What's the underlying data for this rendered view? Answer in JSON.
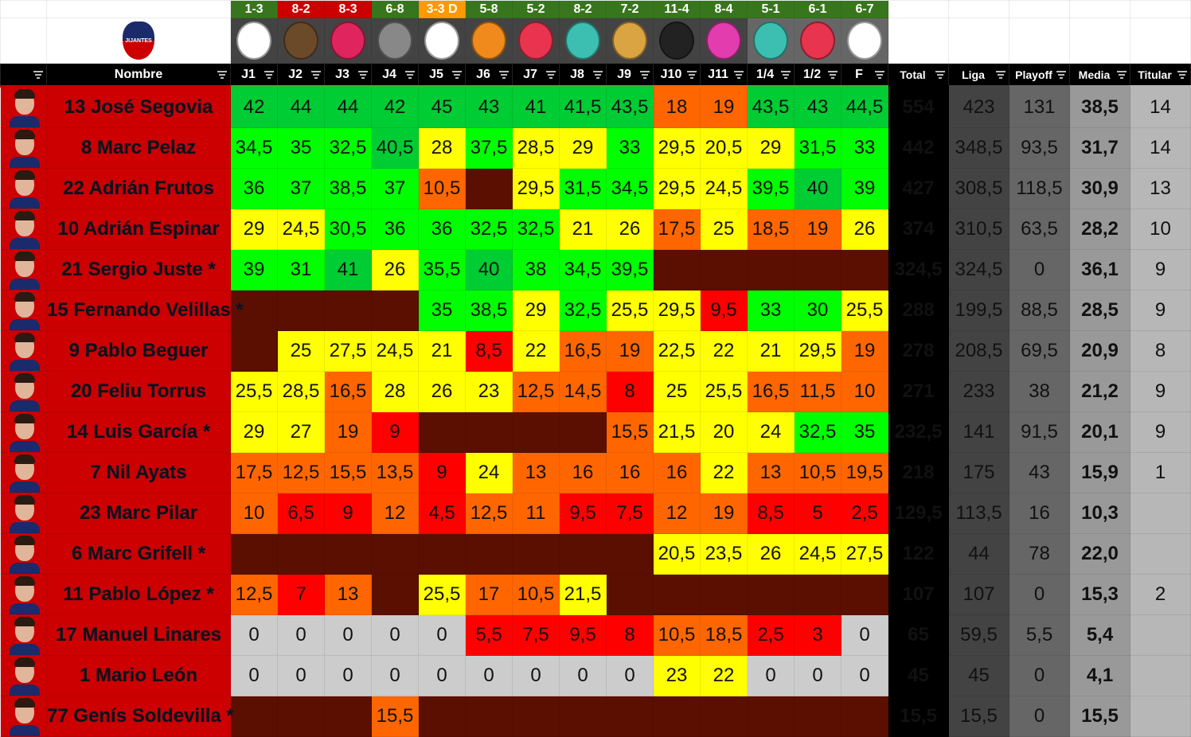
{
  "colors": {
    "win": "#38761d",
    "loss": "#cc0000",
    "draw": "#ff9900",
    "dark_green": "#00cc33",
    "green": "#00ff00",
    "yellow": "#ffff00",
    "orange": "#ff6600",
    "red": "#ff0000",
    "zero": "#cccccc",
    "empty": "#5b0f00",
    "name_bg": "#cc0000",
    "name_text": "#1a12a8"
  },
  "team_logo": {
    "icon": "jijantes-fc-crest-icon",
    "text": "JIJANTES FUTBOL CLUB"
  },
  "rounds": [
    {
      "label": "J1",
      "result": "1-3",
      "outcome": "win",
      "opponent_icon": "pio-fc-crest-icon"
    },
    {
      "label": "J2",
      "result": "8-2",
      "outcome": "loss",
      "opponent_icon": "lion-crest-icon"
    },
    {
      "label": "J3",
      "result": "8-3",
      "outcome": "loss",
      "opponent_icon": "porcinos-fc-crest-icon"
    },
    {
      "label": "J4",
      "result": "6-8",
      "outcome": "win",
      "opponent_icon": "tree-crest-icon"
    },
    {
      "label": "J5",
      "result": "3-3 D",
      "outcome": "draw",
      "opponent_icon": "xbuyer-crest-icon"
    },
    {
      "label": "J6",
      "result": "5-8",
      "outcome": "win",
      "opponent_icon": "flame-crest-icon"
    },
    {
      "label": "J7",
      "result": "5-2",
      "outcome": "win",
      "opponent_icon": "aniquiladores-crest-icon"
    },
    {
      "label": "J8",
      "result": "8-2",
      "outcome": "win",
      "opponent_icon": "el-barrio-crest-icon"
    },
    {
      "label": "J9",
      "result": "7-2",
      "outcome": "win",
      "opponent_icon": "rayo-barcelona-crest-icon"
    },
    {
      "label": "J10",
      "result": "11-4",
      "outcome": "win",
      "opponent_icon": "kunisports-crest-icon"
    },
    {
      "label": "J11",
      "result": "8-4",
      "outcome": "win",
      "opponent_icon": "1k-fc-crest-icon"
    },
    {
      "label": "1/4",
      "result": "5-1",
      "outcome": "win",
      "opponent_icon": "el-barrio-crest-icon"
    },
    {
      "label": "1/2",
      "result": "6-1",
      "outcome": "win",
      "opponent_icon": "aniquiladores-crest-icon"
    },
    {
      "label": "F",
      "result": "6-7",
      "outcome": "win",
      "opponent_icon": "xbuyer-crest-icon"
    }
  ],
  "headers": {
    "name": "Nombre",
    "total": "Total",
    "liga": "Liga",
    "playoff": "Playoff",
    "media": "Media",
    "titular": "Titular"
  },
  "players": [
    {
      "name": "13 José Segovia",
      "scores": [
        "42",
        "44",
        "44",
        "42",
        "45",
        "43",
        "41",
        "41,5",
        "43,5",
        "18",
        "19",
        "43,5",
        "43",
        "44,5"
      ],
      "total": "554",
      "liga": "423",
      "playoff": "131",
      "media": "38,5",
      "titular": "14"
    },
    {
      "name": "8 Marc Pelaz",
      "scores": [
        "34,5",
        "35",
        "32,5",
        "40,5",
        "28",
        "37,5",
        "28,5",
        "29",
        "33",
        "29,5",
        "20,5",
        "29",
        "31,5",
        "33"
      ],
      "total": "442",
      "liga": "348,5",
      "playoff": "93,5",
      "media": "31,7",
      "titular": "14"
    },
    {
      "name": "22 Adrián Frutos",
      "scores": [
        "36",
        "37",
        "38,5",
        "37",
        "10,5",
        "",
        "29,5",
        "31,5",
        "34,5",
        "29,5",
        "24,5",
        "39,5",
        "40",
        "39"
      ],
      "total": "427",
      "liga": "308,5",
      "playoff": "118,5",
      "media": "30,9",
      "titular": "13"
    },
    {
      "name": "10 Adrián Espinar",
      "scores": [
        "29",
        "24,5",
        "30,5",
        "36",
        "36",
        "32,5",
        "32,5",
        "21",
        "26",
        "17,5",
        "25",
        "18,5",
        "19",
        "26"
      ],
      "total": "374",
      "liga": "310,5",
      "playoff": "63,5",
      "media": "28,2",
      "titular": "10"
    },
    {
      "name": "21 Sergio Juste *",
      "scores": [
        "39",
        "31",
        "41",
        "26",
        "35,5",
        "40",
        "38",
        "34,5",
        "39,5",
        "",
        "",
        "",
        "",
        ""
      ],
      "total": "324,5",
      "liga": "324,5",
      "playoff": "0",
      "media": "36,1",
      "titular": "9"
    },
    {
      "name": "15 Fernando Velillas *",
      "scores": [
        "",
        "",
        "",
        "",
        "35",
        "38,5",
        "29",
        "32,5",
        "25,5",
        "29,5",
        "9,5",
        "33",
        "30",
        "25,5"
      ],
      "total": "288",
      "liga": "199,5",
      "playoff": "88,5",
      "media": "28,5",
      "titular": "9"
    },
    {
      "name": "9 Pablo Beguer",
      "scores": [
        "",
        "25",
        "27,5",
        "24,5",
        "21",
        "8,5",
        "22",
        "16,5",
        "19",
        "22,5",
        "22",
        "21",
        "29,5",
        "19"
      ],
      "total": "278",
      "liga": "208,5",
      "playoff": "69,5",
      "media": "20,9",
      "titular": "8"
    },
    {
      "name": "20 Feliu Torrus",
      "scores": [
        "25,5",
        "28,5",
        "16,5",
        "28",
        "26",
        "23",
        "12,5",
        "14,5",
        "8",
        "25",
        "25,5",
        "16,5",
        "11,5",
        "10"
      ],
      "total": "271",
      "liga": "233",
      "playoff": "38",
      "media": "21,2",
      "titular": "9"
    },
    {
      "name": "14 Luis García *",
      "scores": [
        "29",
        "27",
        "19",
        "9",
        "",
        "",
        "",
        "",
        "15,5",
        "21,5",
        "20",
        "24",
        "32,5",
        "35"
      ],
      "total": "232,5",
      "liga": "141",
      "playoff": "91,5",
      "media": "20,1",
      "titular": "9"
    },
    {
      "name": "7 Nil Ayats",
      "scores": [
        "17,5",
        "12,5",
        "15,5",
        "13,5",
        "9",
        "24",
        "13",
        "16",
        "16",
        "16",
        "22",
        "13",
        "10,5",
        "19,5"
      ],
      "total": "218",
      "liga": "175",
      "playoff": "43",
      "media": "15,9",
      "titular": "1"
    },
    {
      "name": "23 Marc Pilar",
      "scores": [
        "10",
        "6,5",
        "9",
        "12",
        "4,5",
        "12,5",
        "11",
        "9,5",
        "7,5",
        "12",
        "19",
        "8,5",
        "5",
        "2,5"
      ],
      "total": "129,5",
      "liga": "113,5",
      "playoff": "16",
      "media": "10,3",
      "titular": ""
    },
    {
      "name": "6 Marc Grifell *",
      "scores": [
        "",
        "",
        "",
        "",
        "",
        "",
        "",
        "",
        "",
        "20,5",
        "23,5",
        "26",
        "24,5",
        "27,5"
      ],
      "total": "122",
      "liga": "44",
      "playoff": "78",
      "media": "22,0",
      "titular": ""
    },
    {
      "name": "11 Pablo López *",
      "scores": [
        "12,5",
        "7",
        "13",
        "",
        "25,5",
        "17",
        "10,5",
        "21,5",
        "",
        "",
        "",
        "",
        "",
        ""
      ],
      "total": "107",
      "liga": "107",
      "playoff": "0",
      "media": "15,3",
      "titular": "2"
    },
    {
      "name": "17 Manuel Linares",
      "scores": [
        "0",
        "0",
        "0",
        "0",
        "0",
        "5,5",
        "7,5",
        "9,5",
        "8",
        "10,5",
        "18,5",
        "2,5",
        "3",
        "0"
      ],
      "total": "65",
      "liga": "59,5",
      "playoff": "5,5",
      "media": "5,4",
      "titular": ""
    },
    {
      "name": "1 Mario León",
      "scores": [
        "0",
        "0",
        "0",
        "0",
        "0",
        "0",
        "0",
        "0",
        "0",
        "23",
        "22",
        "0",
        "0",
        "0"
      ],
      "total": "45",
      "liga": "45",
      "playoff": "0",
      "media": "4,1",
      "titular": ""
    },
    {
      "name": "77 Genís Soldevilla *",
      "scores": [
        "",
        "",
        "",
        "15,5",
        "",
        "",
        "",
        "",
        "",
        "",
        "",
        "",
        "",
        ""
      ],
      "total": "15,5",
      "liga": "15,5",
      "playoff": "0",
      "media": "15,5",
      "titular": ""
    }
  ]
}
